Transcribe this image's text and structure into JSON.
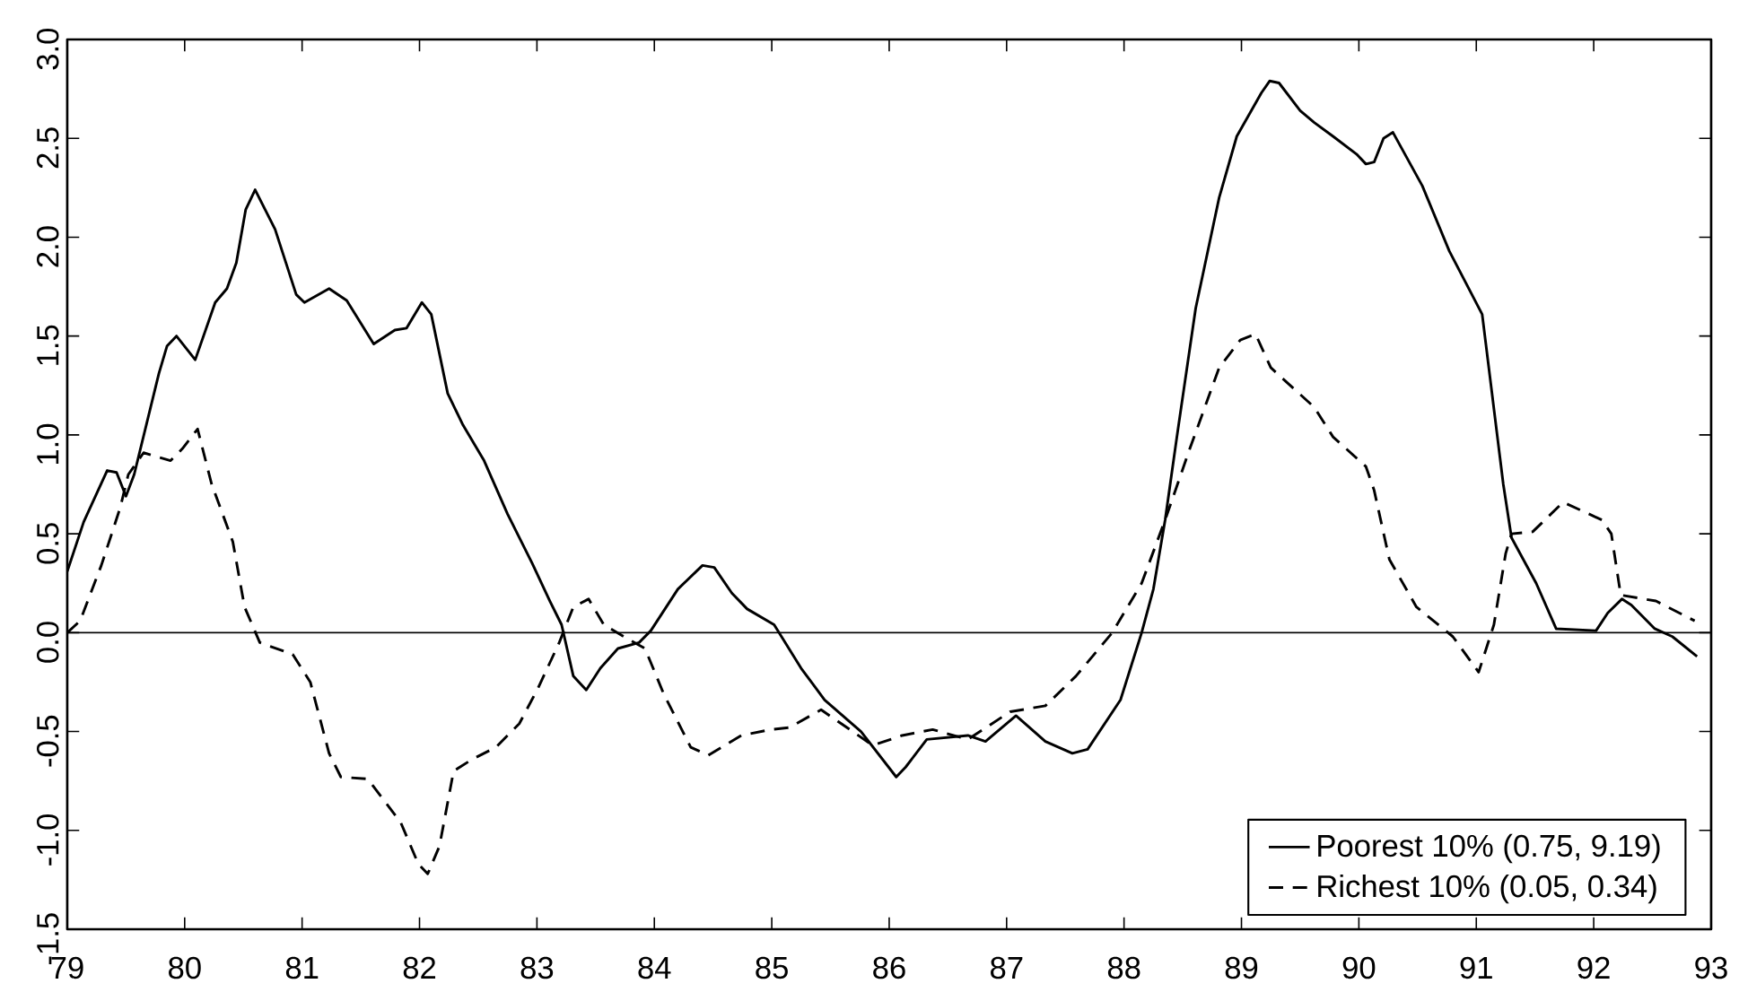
{
  "chart_data": {
    "type": "line",
    "xlim": [
      79,
      93
    ],
    "xticks": [
      79,
      80,
      81,
      82,
      83,
      84,
      85,
      86,
      87,
      88,
      89,
      90,
      91,
      92,
      93
    ],
    "ylim": [
      -1.5,
      3.0
    ],
    "yticks": [
      {
        "value": -1.5,
        "label": "-1.5"
      },
      {
        "value": -1.0,
        "label": "-1.0"
      },
      {
        "value": -0.5,
        "label": "-0.5"
      },
      {
        "value": 0.0,
        "label": "0.0"
      },
      {
        "value": 0.5,
        "label": "0.5"
      },
      {
        "value": 1.0,
        "label": "1.0"
      },
      {
        "value": 1.5,
        "label": "1.5"
      },
      {
        "value": 2.0,
        "label": "2.0"
      },
      {
        "value": 2.5,
        "label": "2.5"
      },
      {
        "value": 3.0,
        "label": "3.0"
      }
    ],
    "grid": false,
    "legend": "bottom right",
    "marker": "none",
    "ref_lines": [
      {
        "axis": "y",
        "value": 0,
        "color": "#000000"
      }
    ],
    "series": [
      {
        "name": "Poorest 10% (0.75,   9.19)",
        "color": "#000000",
        "line_style": "solid",
        "x": [
          79.0,
          79.14,
          79.34,
          79.42,
          79.5,
          79.57,
          79.78,
          79.85,
          79.93,
          80.09,
          80.26,
          80.36,
          80.44,
          80.52,
          80.6,
          80.77,
          80.95,
          81.02,
          81.23,
          81.38,
          81.61,
          81.79,
          81.89,
          82.02,
          82.1,
          82.24,
          82.37,
          82.55,
          82.75,
          82.96,
          83.11,
          83.21,
          83.31,
          83.42,
          83.54,
          83.69,
          83.87,
          83.97,
          84.2,
          84.41,
          84.51,
          84.66,
          84.79,
          85.02,
          85.25,
          85.45,
          85.76,
          86.06,
          86.14,
          86.32,
          86.67,
          86.82,
          87.08,
          87.33,
          87.56,
          87.69,
          87.97,
          88.15,
          88.25,
          88.35,
          88.45,
          88.61,
          88.81,
          88.96,
          89.17,
          89.24,
          89.32,
          89.5,
          89.62,
          89.78,
          89.98,
          90.06,
          90.13,
          90.21,
          90.29,
          90.54,
          90.77,
          91.05,
          91.23,
          91.3,
          91.51,
          91.68,
          92.02,
          92.12,
          92.24,
          92.32,
          92.52,
          92.67,
          92.88
        ],
        "values": [
          0.31,
          0.56,
          0.82,
          0.81,
          0.69,
          0.8,
          1.31,
          1.45,
          1.5,
          1.38,
          1.67,
          1.74,
          1.87,
          2.14,
          2.24,
          2.04,
          1.71,
          1.67,
          1.74,
          1.68,
          1.46,
          1.53,
          1.54,
          1.67,
          1.61,
          1.21,
          1.05,
          0.87,
          0.6,
          0.35,
          0.16,
          0.04,
          -0.22,
          -0.29,
          -0.18,
          -0.08,
          -0.05,
          0.01,
          0.22,
          0.34,
          0.33,
          0.2,
          0.12,
          0.04,
          -0.18,
          -0.34,
          -0.5,
          -0.73,
          -0.68,
          -0.54,
          -0.52,
          -0.55,
          -0.42,
          -0.55,
          -0.61,
          -0.59,
          -0.34,
          0.0,
          0.22,
          0.57,
          0.99,
          1.64,
          2.2,
          2.51,
          2.73,
          2.79,
          2.78,
          2.64,
          2.58,
          2.51,
          2.42,
          2.37,
          2.38,
          2.5,
          2.53,
          2.26,
          1.93,
          1.61,
          0.75,
          0.48,
          0.25,
          0.02,
          0.01,
          0.1,
          0.17,
          0.14,
          0.02,
          -0.02,
          -0.12
        ]
      },
      {
        "name": "Richest 10% (0.05,   0.34)",
        "color": "#000000",
        "line_style": "dashed",
        "x": [
          79.0,
          79.11,
          79.29,
          79.45,
          79.52,
          79.65,
          79.88,
          79.98,
          80.11,
          80.23,
          80.41,
          80.51,
          80.64,
          80.92,
          81.07,
          81.23,
          81.33,
          81.56,
          81.84,
          81.99,
          82.07,
          82.17,
          82.29,
          82.45,
          82.65,
          82.85,
          83.01,
          83.19,
          83.31,
          83.44,
          83.57,
          83.77,
          83.92,
          84.08,
          84.31,
          84.46,
          84.74,
          84.99,
          85.15,
          85.42,
          85.86,
          86.11,
          86.37,
          86.67,
          87.03,
          87.33,
          87.59,
          87.9,
          88.15,
          88.35,
          88.56,
          88.81,
          88.99,
          89.12,
          89.25,
          89.62,
          89.78,
          90.06,
          90.13,
          90.26,
          90.49,
          90.8,
          91.02,
          91.15,
          91.25,
          91.3,
          91.48,
          91.74,
          92.07,
          92.15,
          92.23,
          92.53,
          92.86
        ],
        "values": [
          0.0,
          0.06,
          0.34,
          0.63,
          0.8,
          0.91,
          0.87,
          0.93,
          1.03,
          0.75,
          0.46,
          0.13,
          -0.05,
          -0.11,
          -0.25,
          -0.61,
          -0.73,
          -0.74,
          -0.96,
          -1.17,
          -1.22,
          -1.08,
          -0.7,
          -0.64,
          -0.58,
          -0.46,
          -0.28,
          -0.05,
          0.13,
          0.17,
          0.04,
          -0.03,
          -0.08,
          -0.31,
          -0.58,
          -0.62,
          -0.52,
          -0.49,
          -0.48,
          -0.39,
          -0.57,
          -0.52,
          -0.49,
          -0.54,
          -0.4,
          -0.37,
          -0.22,
          0.0,
          0.25,
          0.57,
          0.93,
          1.34,
          1.48,
          1.51,
          1.34,
          1.14,
          0.99,
          0.84,
          0.72,
          0.37,
          0.13,
          -0.02,
          -0.2,
          0.04,
          0.4,
          0.5,
          0.51,
          0.66,
          0.57,
          0.5,
          0.19,
          0.16,
          0.06
        ]
      }
    ]
  }
}
